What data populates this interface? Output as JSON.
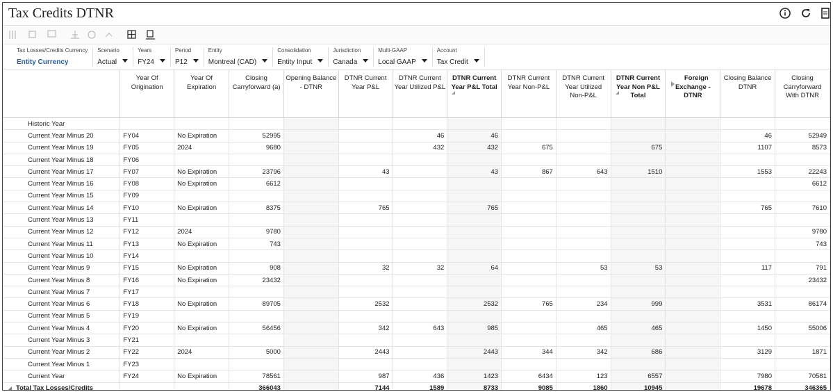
{
  "header": {
    "title": "Tax Credits DTNR"
  },
  "pov": [
    {
      "label": "Tax Losses/Credits Currency",
      "value": "Entity Currency"
    },
    {
      "label": "Scenario",
      "value": "Actual"
    },
    {
      "label": "Years",
      "value": "FY24"
    },
    {
      "label": "Period",
      "value": "P12"
    },
    {
      "label": "Entity",
      "value": "Montreal (CAD)"
    },
    {
      "label": "Consolidation",
      "value": "Entity Input"
    },
    {
      "label": "Jurisdiction",
      "value": "Canada"
    },
    {
      "label": "Multi-GAAP",
      "value": "Local GAAP"
    },
    {
      "label": "Account",
      "value": "Tax Credit"
    }
  ],
  "table": {
    "columns": [
      "Year Of Origination",
      "Year Of Expiration",
      "Closing Carryforward (a)",
      "Opening Balance - DTNR",
      "DTNR Current Year P&L",
      "DTNR Current Year Utilized P&L",
      "DTNR Current Year P&L Total",
      "DTNR Current Year Non-P&L",
      "DTNR Current Year Utilized Non-P&L",
      "DTNR Current Year Non P&L Total",
      "Foreign Exchange - DTNR",
      "Closing Balance DTNR",
      "Closing Carryforward With DTNR"
    ],
    "rows": [
      [
        "Historic Year",
        null,
        null,
        null,
        null,
        null,
        null,
        null,
        null,
        null,
        null,
        null,
        null,
        null
      ],
      [
        "Current Year Minus 20",
        "FY04",
        "No Expiration",
        52995,
        null,
        null,
        46,
        46,
        null,
        null,
        null,
        null,
        46,
        52949
      ],
      [
        "Current Year Minus 19",
        "FY05",
        "2024",
        9680,
        null,
        null,
        432,
        432,
        675,
        null,
        675,
        null,
        1107,
        8573
      ],
      [
        "Current Year Minus 18",
        "FY06",
        null,
        null,
        null,
        null,
        null,
        null,
        null,
        null,
        null,
        null,
        null,
        null
      ],
      [
        "Current Year Minus 17",
        "FY07",
        "No Expiration",
        23796,
        null,
        43,
        null,
        43,
        867,
        643,
        1510,
        null,
        1553,
        22243
      ],
      [
        "Current Year Minus 16",
        "FY08",
        "No Expiration",
        6612,
        null,
        null,
        null,
        null,
        null,
        null,
        null,
        null,
        null,
        6612
      ],
      [
        "Current Year Minus 15",
        "FY09",
        null,
        null,
        null,
        null,
        null,
        null,
        null,
        null,
        null,
        null,
        null,
        null
      ],
      [
        "Current Year Minus 14",
        "FY10",
        "No Expiration",
        8375,
        null,
        765,
        null,
        765,
        null,
        null,
        null,
        null,
        765,
        7610
      ],
      [
        "Current Year Minus 13",
        "FY11",
        null,
        null,
        null,
        null,
        null,
        null,
        null,
        null,
        null,
        null,
        null,
        null
      ],
      [
        "Current Year Minus 12",
        "FY12",
        "2024",
        9780,
        null,
        null,
        null,
        null,
        null,
        null,
        null,
        null,
        null,
        9780
      ],
      [
        "Current Year Minus 11",
        "FY13",
        "No Expiration",
        743,
        null,
        null,
        null,
        null,
        null,
        null,
        null,
        null,
        null,
        743
      ],
      [
        "Current Year Minus 10",
        "FY14",
        null,
        null,
        null,
        null,
        null,
        null,
        null,
        null,
        null,
        null,
        null,
        null
      ],
      [
        "Current Year Minus 9",
        "FY15",
        "No Expiration",
        908,
        null,
        32,
        32,
        64,
        null,
        53,
        53,
        null,
        117,
        791
      ],
      [
        "Current Year Minus 8",
        "FY16",
        "No Expiration",
        23432,
        null,
        null,
        null,
        null,
        null,
        null,
        null,
        null,
        null,
        23432
      ],
      [
        "Current Year Minus 7",
        "FY17",
        null,
        null,
        null,
        null,
        null,
        null,
        null,
        null,
        null,
        null,
        null,
        null
      ],
      [
        "Current Year Minus 6",
        "FY18",
        "No Expiration",
        89705,
        null,
        2532,
        null,
        2532,
        765,
        234,
        999,
        null,
        3531,
        86174
      ],
      [
        "Current Year Minus 5",
        "FY19",
        null,
        null,
        null,
        null,
        null,
        null,
        null,
        null,
        null,
        null,
        null,
        null
      ],
      [
        "Current Year Minus 4",
        "FY20",
        "No Expiration",
        56456,
        null,
        342,
        643,
        985,
        null,
        465,
        465,
        null,
        1450,
        55006
      ],
      [
        "Current Year Minus 3",
        "FY21",
        null,
        null,
        null,
        null,
        null,
        null,
        null,
        null,
        null,
        null,
        null,
        null
      ],
      [
        "Current Year Minus 2",
        "FY22",
        "2024",
        5000,
        null,
        2443,
        null,
        2443,
        344,
        342,
        686,
        null,
        3129,
        1871
      ],
      [
        "Current Year Minus 1",
        "FY23",
        null,
        null,
        null,
        null,
        null,
        null,
        null,
        null,
        null,
        null,
        null,
        null
      ],
      [
        "Current Year",
        "FY24",
        "No Expiration",
        78561,
        null,
        987,
        436,
        1423,
        6434,
        123,
        6557,
        null,
        7980,
        70581
      ],
      [
        "Total Tax Losses/Credits",
        null,
        null,
        366043,
        null,
        7144,
        1589,
        8733,
        9085,
        1860,
        10945,
        null,
        19678,
        346365
      ]
    ]
  }
}
